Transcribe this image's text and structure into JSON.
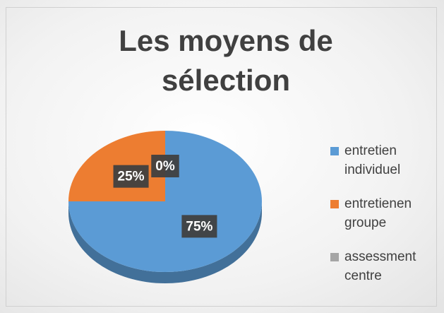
{
  "chart_data": {
    "type": "pie",
    "title": "Les moyens de sélection",
    "categories": [
      "entretien individuel",
      "entretienen groupe",
      "assessment centre"
    ],
    "values": [
      75,
      25,
      0
    ],
    "value_labels": [
      "75%",
      "25%",
      "0%"
    ],
    "colors": [
      "#5b9bd5",
      "#ed7d31",
      "#a5a5a5"
    ],
    "legend": "right"
  }
}
